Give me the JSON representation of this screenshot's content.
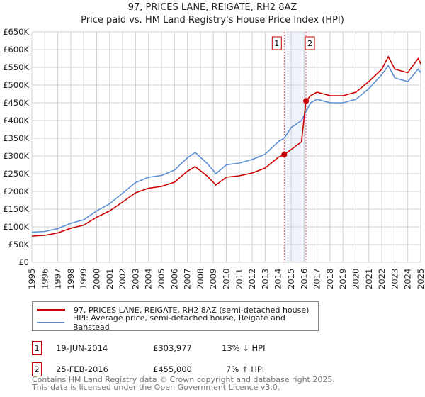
{
  "chart_data": {
    "type": "line",
    "title": "97, PRICES LANE, REIGATE, RH2 8AZ",
    "subtitle": "Price paid vs. HM Land Registry's House Price Index (HPI)",
    "xlim": [
      1995,
      2025
    ],
    "ylim": [
      0,
      650000
    ],
    "yticks": [
      0,
      50000,
      100000,
      150000,
      200000,
      250000,
      300000,
      350000,
      400000,
      450000,
      500000,
      550000,
      600000,
      650000
    ],
    "ytick_labels": [
      "£0",
      "£50K",
      "£100K",
      "£150K",
      "£200K",
      "£250K",
      "£300K",
      "£350K",
      "£400K",
      "£450K",
      "£500K",
      "£550K",
      "£600K",
      "£650K"
    ],
    "xtick_labels": [
      "1995",
      "1996",
      "1997",
      "1998",
      "1999",
      "2000",
      "2001",
      "2002",
      "2003",
      "2004",
      "2005",
      "2006",
      "2007",
      "2008",
      "2009",
      "2010",
      "2011",
      "2012",
      "2013",
      "2014",
      "2015",
      "2016",
      "2017",
      "2018",
      "2019",
      "2020",
      "2021",
      "2022",
      "2023",
      "2024",
      "2025"
    ],
    "grid": true,
    "shaded_region": [
      2014.47,
      2016.15
    ],
    "series": [
      {
        "name": "97, PRICES LANE, REIGATE, RH2 8AZ (semi-detached house)",
        "color": "#cc0000",
        "x": [
          1995,
          1996,
          1997,
          1998,
          1999,
          2000,
          2001,
          2002,
          2003,
          2004,
          2005,
          2006,
          2007,
          2007.6,
          2008.5,
          2009.2,
          2010,
          2011,
          2012,
          2013,
          2014,
          2014.47,
          2015,
          2015.8,
          2016.15,
          2016.5,
          2017,
          2018,
          2019,
          2020,
          2021,
          2022,
          2022.5,
          2023,
          2024,
          2024.8,
          2025
        ],
        "y": [
          74000,
          76000,
          83000,
          96000,
          105000,
          127000,
          145000,
          170000,
          196000,
          209000,
          214000,
          226000,
          257000,
          270000,
          244000,
          218000,
          240000,
          244000,
          252000,
          266000,
          296000,
          303977,
          318000,
          340000,
          455000,
          470000,
          480000,
          470000,
          470000,
          480000,
          510000,
          545000,
          580000,
          545000,
          535000,
          575000,
          560000
        ]
      },
      {
        "name": "HPI: Average price, semi-detached house, Reigate and Banstead",
        "color": "#5b8fd6",
        "x": [
          1995,
          1996,
          1997,
          1998,
          1999,
          2000,
          2001,
          2002,
          2003,
          2004,
          2005,
          2006,
          2007,
          2007.6,
          2008.5,
          2009.2,
          2010,
          2011,
          2012,
          2013,
          2014,
          2014.47,
          2015,
          2015.8,
          2016.15,
          2016.5,
          2017,
          2018,
          2019,
          2020,
          2021,
          2022,
          2022.5,
          2023,
          2024,
          2024.8,
          2025
        ],
        "y": [
          85000,
          87000,
          95000,
          110000,
          120000,
          145000,
          165000,
          195000,
          225000,
          240000,
          245000,
          260000,
          295000,
          310000,
          280000,
          250000,
          275000,
          280000,
          290000,
          305000,
          340000,
          350000,
          380000,
          400000,
          425000,
          450000,
          460000,
          450000,
          450000,
          460000,
          490000,
          530000,
          555000,
          520000,
          510000,
          545000,
          535000
        ]
      }
    ],
    "sales": [
      {
        "label": "1",
        "date": "19-JUN-2014",
        "x": 2014.47,
        "price": "£303,977",
        "value": 303977,
        "hpi": "13% ↓ HPI"
      },
      {
        "label": "2",
        "date": "25-FEB-2016",
        "x": 2016.15,
        "price": "£455,000",
        "value": 455000,
        "hpi": "7% ↑ HPI"
      }
    ]
  },
  "footer": [
    "Contains HM Land Registry data © Crown copyright and database right 2025.",
    "This data is licensed under the Open Government Licence v3.0."
  ]
}
